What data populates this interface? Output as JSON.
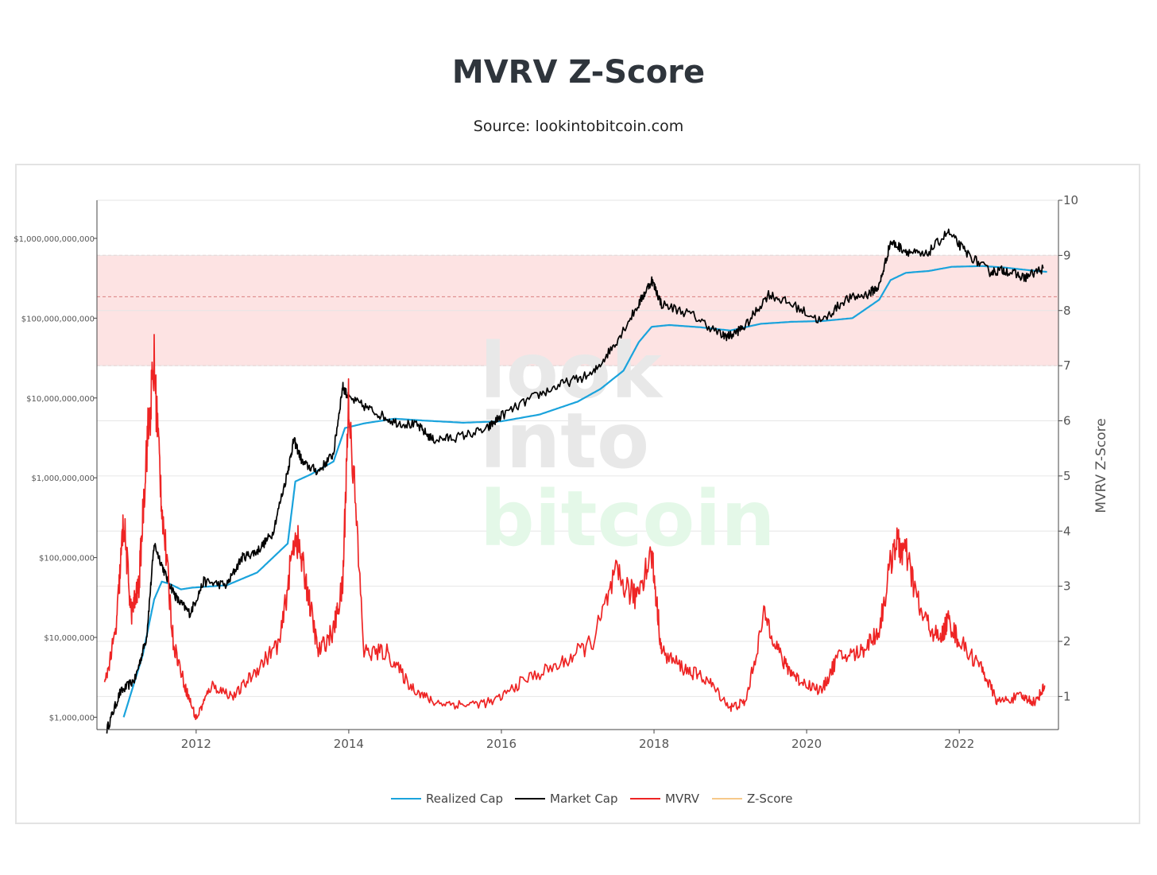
{
  "header": {
    "title": "MVRV Z-Score",
    "subtitle": "Source: lookintobitcoin.com"
  },
  "watermark": {
    "line1": "look",
    "line2": "into",
    "line3": "bitcoin"
  },
  "chart_data": {
    "type": "line",
    "title": "MVRV Z-Score",
    "subtitle": "Source: lookintobitcoin.com",
    "xlabel": "",
    "ylabel_left": "",
    "ylabel_right": "MVRV Z-Score",
    "x_ticks": [
      "2012",
      "2014",
      "2016",
      "2018",
      "2020",
      "2022"
    ],
    "xlim": [
      2010.7,
      2023.3
    ],
    "y_left_scale": "log",
    "y_left_ticks": [
      "$1,000,000",
      "$10,000,000",
      "$100,000,000",
      "$1,000,000,000",
      "$10,000,000,000",
      "$100,000,000,000",
      "$1,000,000,000,000"
    ],
    "y_left_lim": [
      700000,
      3000000000000
    ],
    "y_right_ticks": [
      "1",
      "2",
      "3",
      "4",
      "5",
      "6",
      "7",
      "8",
      "9",
      "10"
    ],
    "y_right_lim": [
      0.4,
      10
    ],
    "grid": true,
    "legend_position": "bottom",
    "shaded_band": {
      "axis": "right",
      "from": 7,
      "to": 9,
      "color": "#fde3e3",
      "line_color": "#d98080"
    },
    "band_lines": [
      7,
      8.25,
      9
    ],
    "series": [
      {
        "name": "Realized Cap",
        "axis": "left",
        "color": "#1aa3dc",
        "x": [
          2011.05,
          2011.3,
          2011.45,
          2011.55,
          2011.65,
          2011.8,
          2011.95,
          2012.4,
          2012.8,
          2013.2,
          2013.3,
          2013.5,
          2013.8,
          2013.95,
          2014.2,
          2014.6,
          2015.0,
          2015.5,
          2016.0,
          2016.5,
          2017.0,
          2017.3,
          2017.6,
          2017.8,
          2017.97,
          2018.2,
          2018.6,
          2019.0,
          2019.4,
          2019.8,
          2020.2,
          2020.6,
          2020.95,
          2021.1,
          2021.3,
          2021.6,
          2021.9,
          2022.3,
          2022.6,
          2022.9,
          2023.15
        ],
        "values": [
          1000000,
          6000000,
          30000000,
          50000000,
          47000000,
          40000000,
          42000000,
          45000000,
          65000000,
          150000000,
          900000000,
          1100000000,
          1600000000,
          4200000000,
          4800000000,
          5500000000,
          5200000000,
          4900000000,
          5100000000,
          6200000000,
          9000000000,
          13000000000,
          22000000000,
          50000000000,
          78000000000,
          82000000000,
          77000000000,
          70000000000,
          85000000000,
          90000000000,
          92000000000,
          100000000000,
          170000000000,
          300000000000,
          370000000000,
          390000000000,
          440000000000,
          450000000000,
          430000000000,
          400000000000,
          380000000000
        ]
      },
      {
        "name": "Market Cap",
        "axis": "left",
        "color": "#000000",
        "x": [
          2010.83,
          2011.0,
          2011.2,
          2011.35,
          2011.45,
          2011.6,
          2011.75,
          2011.92,
          2012.1,
          2012.4,
          2012.6,
          2012.8,
          2013.0,
          2013.2,
          2013.28,
          2013.4,
          2013.6,
          2013.8,
          2013.92,
          2014.0,
          2014.3,
          2014.6,
          2014.9,
          2015.1,
          2015.4,
          2015.8,
          2016.0,
          2016.4,
          2016.8,
          2017.2,
          2017.5,
          2017.8,
          2017.97,
          2018.1,
          2018.5,
          2018.9,
          2019.0,
          2019.2,
          2019.5,
          2019.8,
          2020.2,
          2020.5,
          2020.8,
          2020.95,
          2021.1,
          2021.3,
          2021.55,
          2021.85,
          2022.1,
          2022.4,
          2022.6,
          2022.85,
          2023.1
        ],
        "values": [
          700000,
          2000000,
          3000000,
          10000000,
          150000000,
          60000000,
          30000000,
          20000000,
          50000000,
          45000000,
          100000000,
          120000000,
          200000000,
          1200000000,
          3000000000,
          1500000000,
          1200000000,
          2000000000,
          14000000000,
          10000000000,
          7000000000,
          5000000000,
          4500000000,
          3000000000,
          3200000000,
          4000000000,
          6000000000,
          10000000000,
          15000000000,
          20000000000,
          50000000000,
          150000000000,
          300000000000,
          150000000000,
          110000000000,
          60000000000,
          60000000000,
          80000000000,
          200000000000,
          150000000000,
          90000000000,
          170000000000,
          200000000000,
          250000000000,
          900000000000,
          700000000000,
          600000000000,
          1200000000000,
          650000000000,
          380000000000,
          400000000000,
          320000000000,
          420000000000
        ]
      },
      {
        "name": "MVRV",
        "axis": "right",
        "color": "#ee2424",
        "x": [
          2010.8,
          2010.95,
          2011.05,
          2011.15,
          2011.25,
          2011.35,
          2011.45,
          2011.55,
          2011.7,
          2011.85,
          2012.0,
          2012.2,
          2012.5,
          2012.8,
          2013.1,
          2013.3,
          2013.45,
          2013.6,
          2013.8,
          2013.92,
          2014.0,
          2014.2,
          2014.5,
          2014.8,
          2015.1,
          2015.5,
          2015.9,
          2016.3,
          2016.8,
          2017.2,
          2017.5,
          2017.75,
          2017.97,
          2018.1,
          2018.4,
          2018.7,
          2019.0,
          2019.2,
          2019.45,
          2019.7,
          2019.9,
          2020.2,
          2020.4,
          2020.7,
          2020.95,
          2021.15,
          2021.3,
          2021.5,
          2021.75,
          2021.85,
          2022.0,
          2022.3,
          2022.5,
          2022.8,
          2023.0,
          2023.12
        ],
        "values": [
          1.2,
          2.2,
          4.2,
          2.5,
          3.0,
          5.5,
          7.0,
          4.5,
          2.0,
          1.2,
          0.6,
          1.2,
          1.0,
          1.5,
          2.0,
          4.0,
          3.0,
          1.8,
          2.2,
          3.0,
          6.5,
          1.8,
          1.8,
          1.2,
          0.9,
          0.85,
          0.9,
          1.3,
          1.6,
          2.0,
          3.2,
          2.8,
          3.6,
          1.8,
          1.5,
          1.3,
          0.8,
          0.9,
          2.5,
          1.6,
          1.3,
          1.1,
          1.7,
          1.8,
          2.2,
          3.8,
          3.6,
          2.5,
          2.0,
          2.4,
          2.0,
          1.5,
          0.9,
          1.0,
          0.9,
          1.2
        ]
      },
      {
        "name": "Z-Score",
        "axis": "right",
        "color": "#f7c98a",
        "x": [],
        "values": []
      }
    ]
  }
}
